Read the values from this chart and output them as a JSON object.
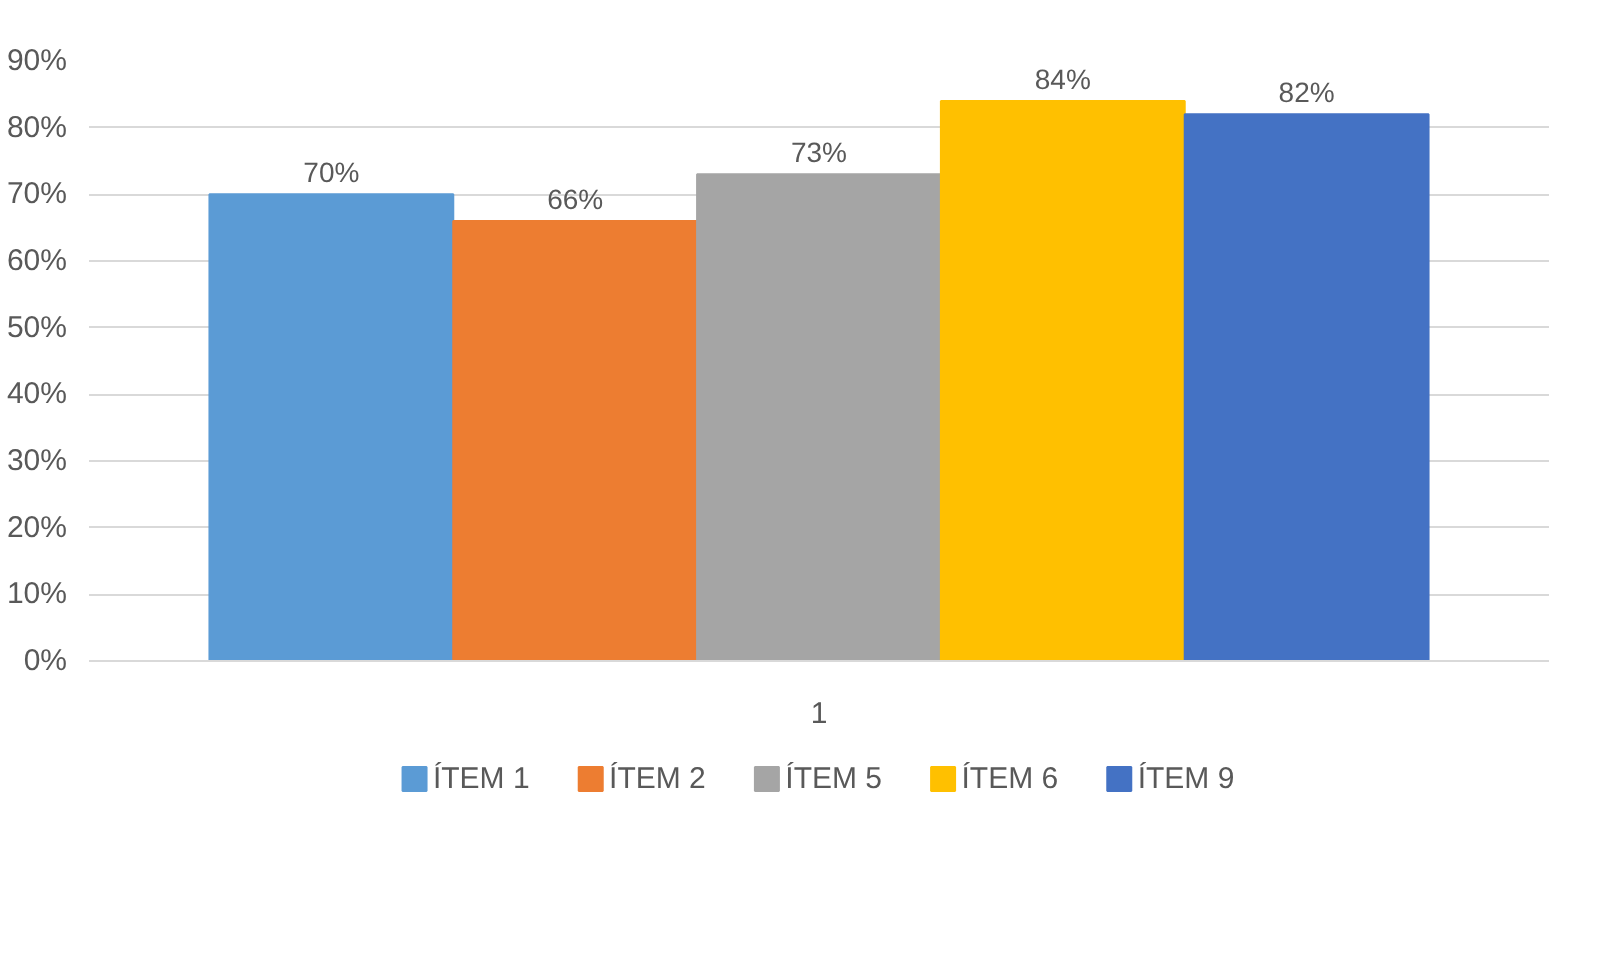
{
  "chart_data": {
    "type": "bar",
    "categories": [
      "1"
    ],
    "series": [
      {
        "name": "ÍTEM 1",
        "color": "#5b9bd5",
        "values": [
          70
        ],
        "value_labels": [
          "70%"
        ]
      },
      {
        "name": "ÍTEM 2",
        "color": "#ed7d31",
        "values": [
          66
        ],
        "value_labels": [
          "66%"
        ]
      },
      {
        "name": "ÍTEM 5",
        "color": "#a5a5a5",
        "values": [
          73
        ],
        "value_labels": [
          "73%"
        ]
      },
      {
        "name": "ÍTEM 6",
        "color": "#ffc000",
        "values": [
          84
        ],
        "value_labels": [
          "84%"
        ]
      },
      {
        "name": "ÍTEM 9",
        "color": "#4472c4",
        "values": [
          82
        ],
        "value_labels": [
          "82%"
        ]
      }
    ],
    "ylim": [
      0,
      90
    ],
    "yticks": [
      {
        "value": 0,
        "label": "0%"
      },
      {
        "value": 10,
        "label": "10%"
      },
      {
        "value": 20,
        "label": "20%"
      },
      {
        "value": 30,
        "label": "30%"
      },
      {
        "value": 40,
        "label": "40%"
      },
      {
        "value": 50,
        "label": "50%"
      },
      {
        "value": 60,
        "label": "60%"
      },
      {
        "value": 70,
        "label": "70%"
      },
      {
        "value": 80,
        "label": "80%"
      },
      {
        "value": 90,
        "label": "90%"
      }
    ],
    "grid": "y",
    "legend": "bottom"
  }
}
